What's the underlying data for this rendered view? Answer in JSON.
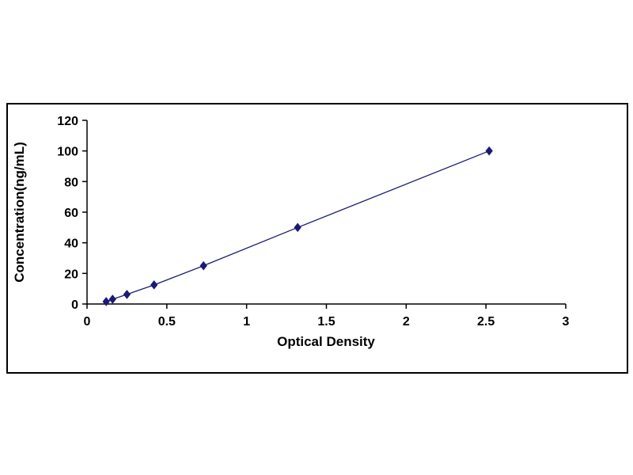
{
  "page": {
    "background": "#ffffff",
    "frame_border_color": "#000000"
  },
  "chart_data": {
    "type": "line",
    "title": "",
    "xlabel": "Optical Density",
    "ylabel": "Concentration(ng/mL)",
    "x": [
      0.12,
      0.16,
      0.25,
      0.42,
      0.73,
      1.32,
      2.52
    ],
    "y": [
      1.56,
      3.13,
      6.25,
      12.5,
      25,
      50,
      100
    ],
    "xlim": [
      0,
      3
    ],
    "ylim": [
      0,
      120
    ],
    "xticks": [
      0,
      0.5,
      1,
      1.5,
      2,
      2.5,
      3
    ],
    "xtick_labels": [
      "0",
      "0.5",
      "1",
      "1.5",
      "2",
      "2.5",
      "3"
    ],
    "yticks": [
      0,
      20,
      40,
      60,
      80,
      100,
      120
    ],
    "ytick_labels": [
      "0",
      "20",
      "40",
      "60",
      "80",
      "100",
      "120"
    ],
    "grid": false,
    "legend": "none",
    "line_color": "#1a1a75",
    "marker": "diamond",
    "marker_color": "#1a1a75",
    "axis_color": "#000000",
    "text_color": "#000000"
  }
}
